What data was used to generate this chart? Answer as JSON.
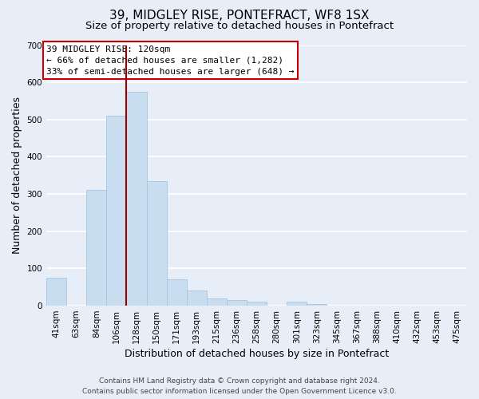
{
  "title": "39, MIDGLEY RISE, PONTEFRACT, WF8 1SX",
  "subtitle": "Size of property relative to detached houses in Pontefract",
  "xlabel": "Distribution of detached houses by size in Pontefract",
  "ylabel": "Number of detached properties",
  "bar_labels": [
    "41sqm",
    "63sqm",
    "84sqm",
    "106sqm",
    "128sqm",
    "150sqm",
    "171sqm",
    "193sqm",
    "215sqm",
    "236sqm",
    "258sqm",
    "280sqm",
    "301sqm",
    "323sqm",
    "345sqm",
    "367sqm",
    "388sqm",
    "410sqm",
    "432sqm",
    "453sqm",
    "475sqm"
  ],
  "bar_values": [
    75,
    0,
    310,
    510,
    575,
    335,
    70,
    40,
    20,
    15,
    10,
    0,
    10,
    5,
    0,
    0,
    0,
    0,
    0,
    0,
    0
  ],
  "bar_color": "#c9ddf0",
  "bar_edge_color": "#a8c4e0",
  "vline_position": 3.5,
  "vline_color": "#990000",
  "ylim": [
    0,
    700
  ],
  "yticks": [
    0,
    100,
    200,
    300,
    400,
    500,
    600,
    700
  ],
  "annotation_title": "39 MIDGLEY RISE: 120sqm",
  "annotation_line1": "← 66% of detached houses are smaller (1,282)",
  "annotation_line2": "33% of semi-detached houses are larger (648) →",
  "annotation_box_color": "#ffffff",
  "annotation_box_edge_color": "#cc0000",
  "footer_line1": "Contains HM Land Registry data © Crown copyright and database right 2024.",
  "footer_line2": "Contains public sector information licensed under the Open Government Licence v3.0.",
  "background_color": "#e8eef8",
  "plot_background_color": "#e8eef8",
  "grid_color": "#ffffff",
  "title_fontsize": 11,
  "subtitle_fontsize": 9.5,
  "axis_label_fontsize": 9,
  "tick_fontsize": 7.5,
  "footer_fontsize": 6.5
}
